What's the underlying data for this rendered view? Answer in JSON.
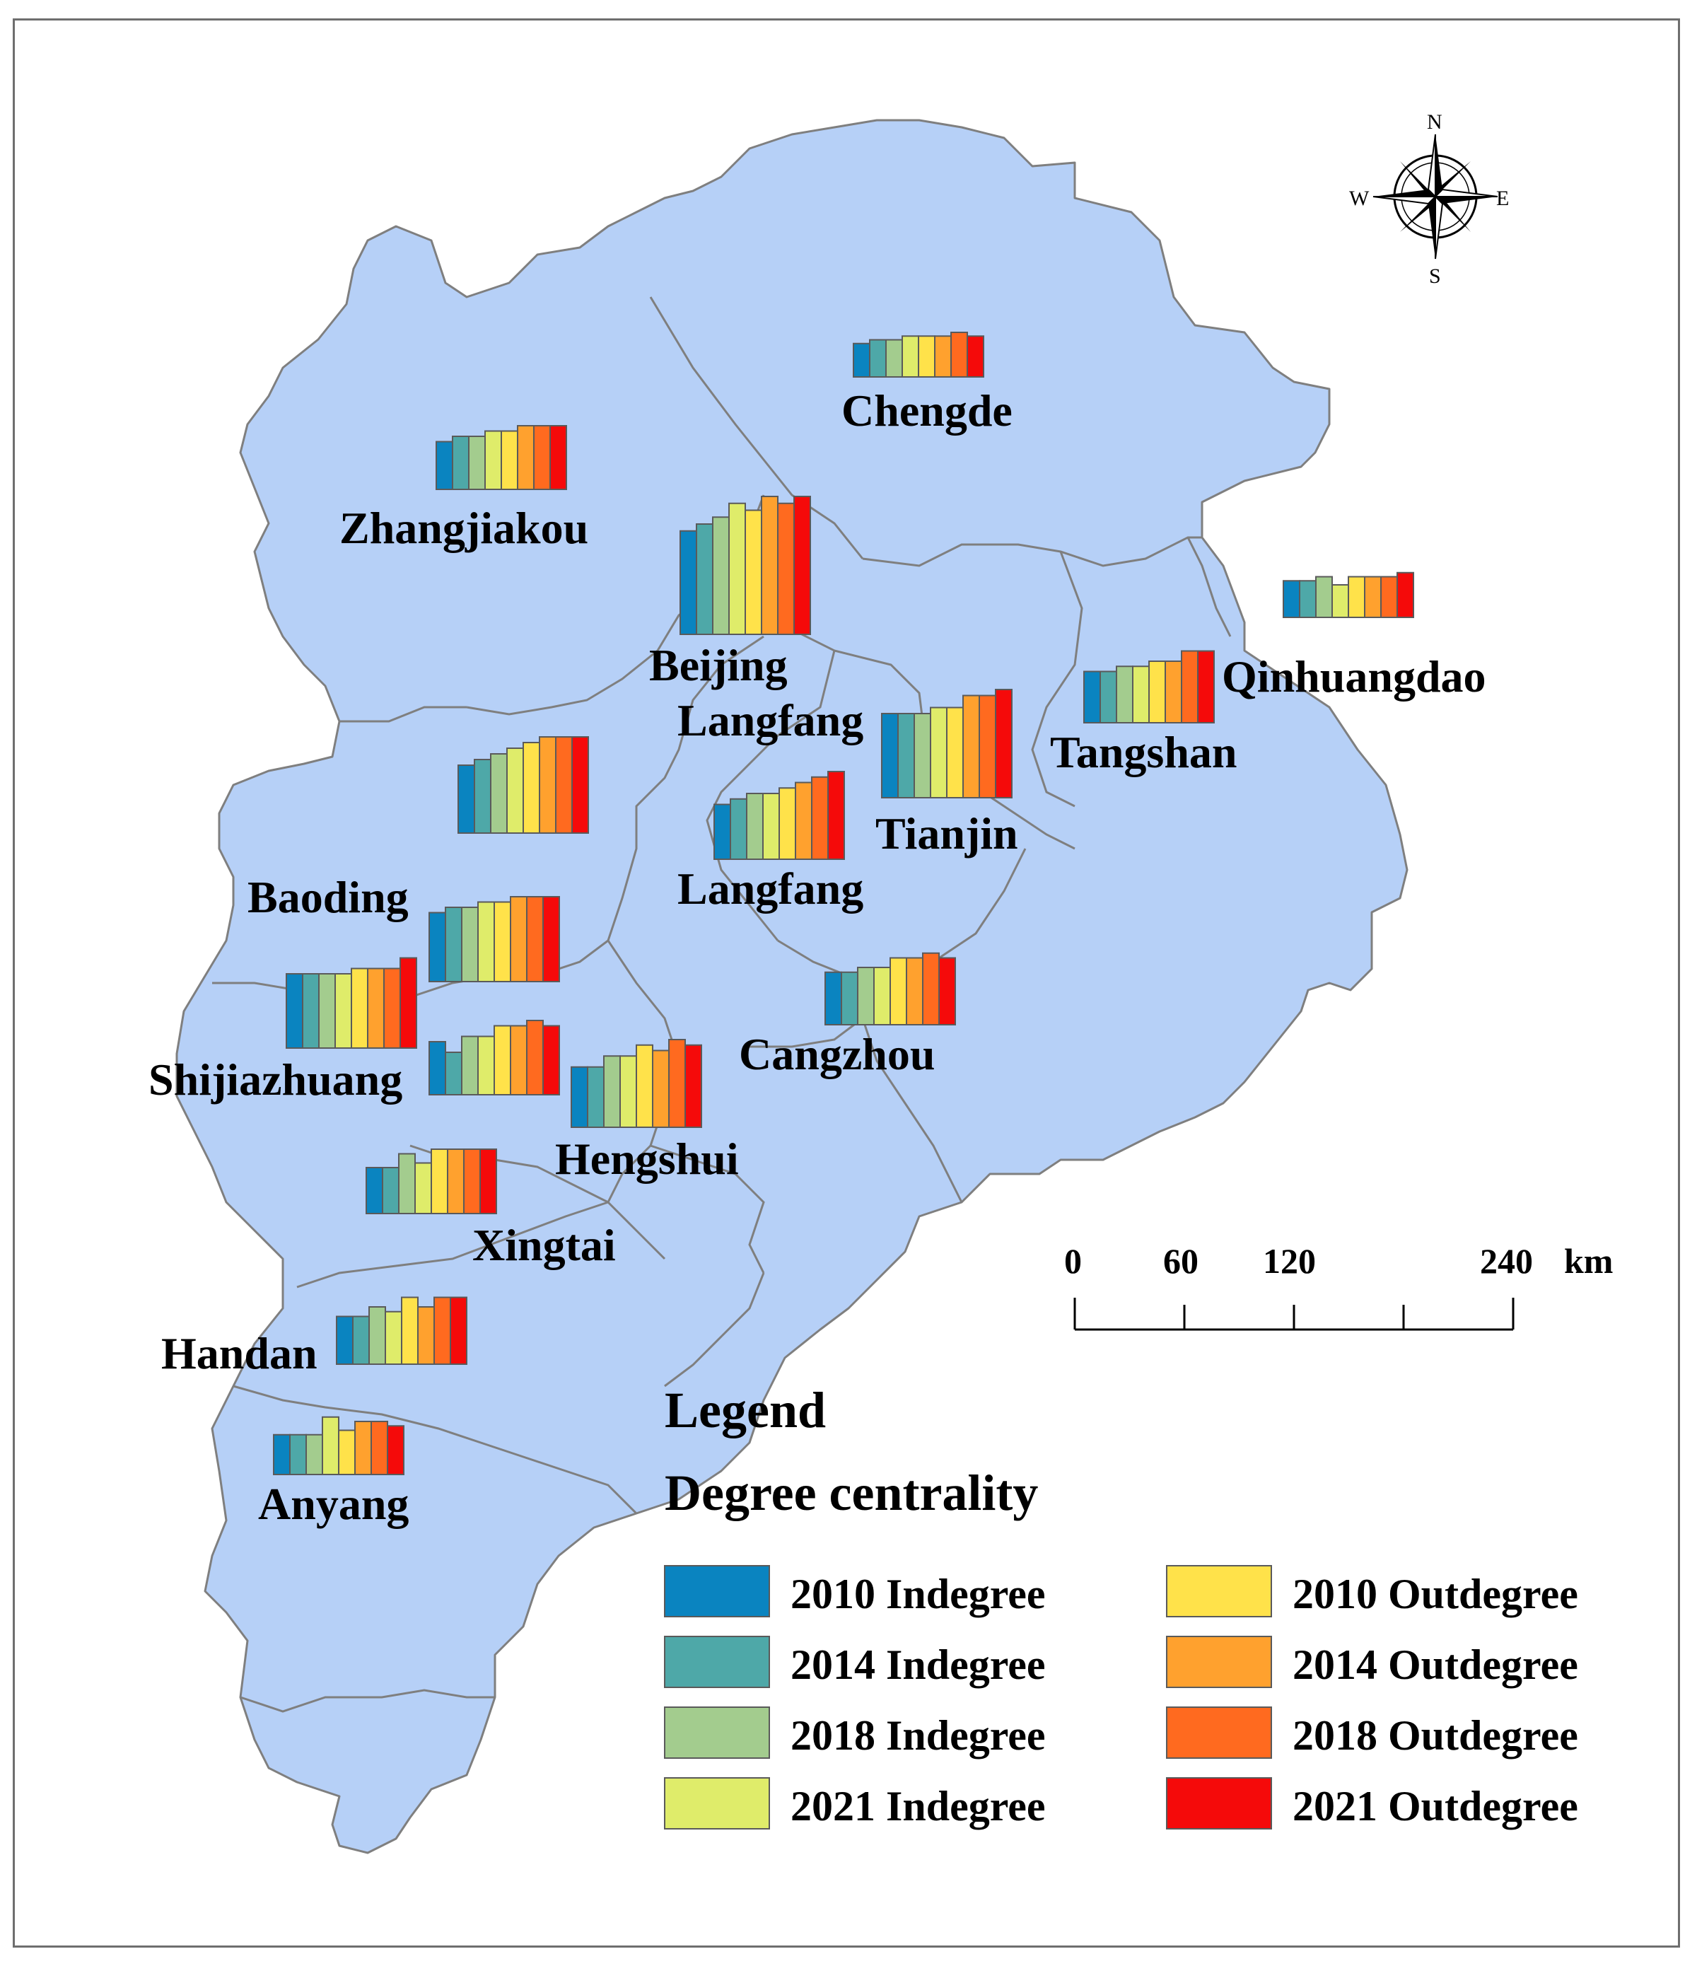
{
  "compass": {
    "north": "N",
    "south": "S",
    "east": "E",
    "west": "W"
  },
  "scale_bar": {
    "labels": [
      "0",
      "60",
      "120",
      "240"
    ],
    "unit": "km"
  },
  "legend": {
    "title": "Legend",
    "subtitle": "Degree centrality",
    "items": [
      {
        "label": "2010 Indegree",
        "color": "#0a84c0"
      },
      {
        "label": "2014 Indegree",
        "color": "#4ea8a8"
      },
      {
        "label": "2018 Indegree",
        "color": "#a3cc8e"
      },
      {
        "label": "2021 Indegree",
        "color": "#dfec6a"
      },
      {
        "label": "2010 Outdegree",
        "color": "#ffe24a"
      },
      {
        "label": "2014 Outdegree",
        "color": "#ffa12e"
      },
      {
        "label": "2018 Outdegree",
        "color": "#ff6a1f"
      },
      {
        "label": "2021 Outdegree",
        "color": "#f50a0a"
      }
    ]
  },
  "colors": {
    "land": "#b6d0f7",
    "border": "#7f7f7f",
    "frame": "#6e6e6e"
  },
  "chart_data": {
    "type": "bar",
    "categories": [
      "2010 Indegree",
      "2014 Indegree",
      "2018 Indegree",
      "2021 Indegree",
      "2010 Outdegree",
      "2014 Outdegree",
      "2018 Outdegree",
      "2021 Outdegree"
    ],
    "cities": [
      {
        "name": "Chengde",
        "values": [
          0.45,
          0.5,
          0.5,
          0.55,
          0.55,
          0.55,
          0.6,
          0.55
        ]
      },
      {
        "name": "Zhangjiakou",
        "values": [
          0.45,
          0.5,
          0.5,
          0.55,
          0.55,
          0.6,
          0.6,
          0.6
        ]
      },
      {
        "name": "Beijing",
        "values": [
          0.75,
          0.8,
          0.85,
          0.95,
          0.9,
          1.0,
          0.95,
          1.0
        ]
      },
      {
        "name": "Qinhuangdao",
        "values": [
          0.45,
          0.45,
          0.5,
          0.4,
          0.5,
          0.5,
          0.5,
          0.55
        ]
      },
      {
        "name": "Tangshan",
        "values": [
          0.5,
          0.5,
          0.55,
          0.55,
          0.6,
          0.6,
          0.7,
          0.7
        ]
      },
      {
        "name": "Tianjin",
        "values": [
          0.7,
          0.7,
          0.7,
          0.75,
          0.75,
          0.85,
          0.85,
          0.9
        ]
      },
      {
        "name": "Langfang",
        "values": [
          0.5,
          0.55,
          0.6,
          0.6,
          0.65,
          0.7,
          0.75,
          0.8
        ]
      },
      {
        "name": "Baoding",
        "values": [
          0.6,
          0.65,
          0.7,
          0.75,
          0.8,
          0.85,
          0.85,
          0.85
        ]
      },
      {
        "name": "Shijiazhuang (upper)",
        "values": [
          0.65,
          0.7,
          0.7,
          0.75,
          0.75,
          0.8,
          0.8,
          0.8
        ]
      },
      {
        "name": "Shijiazhuang",
        "values": [
          0.7,
          0.7,
          0.7,
          0.7,
          0.75,
          0.75,
          0.75,
          0.85
        ]
      },
      {
        "name": "Shijiazhuang (lower)",
        "values": [
          0.5,
          0.4,
          0.55,
          0.55,
          0.65,
          0.65,
          0.7,
          0.65
        ]
      },
      {
        "name": "Hengshui",
        "values": [
          0.55,
          0.55,
          0.65,
          0.65,
          0.75,
          0.7,
          0.8,
          0.75
        ]
      },
      {
        "name": "Cangzhou",
        "values": [
          0.55,
          0.55,
          0.6,
          0.6,
          0.7,
          0.7,
          0.75,
          0.7
        ]
      },
      {
        "name": "Xingtai",
        "values": [
          0.5,
          0.5,
          0.65,
          0.55,
          0.7,
          0.7,
          0.7,
          0.7
        ]
      },
      {
        "name": "Handan",
        "values": [
          0.5,
          0.5,
          0.6,
          0.55,
          0.7,
          0.6,
          0.7,
          0.7
        ]
      },
      {
        "name": "Anyang",
        "values": [
          0.45,
          0.45,
          0.45,
          0.65,
          0.5,
          0.6,
          0.6,
          0.55
        ]
      }
    ]
  },
  "labels": {
    "chengde": "Chengde",
    "zhangjiakou": "Zhangjiakou",
    "beijing": "Beijing",
    "langfang_upper": "Langfang",
    "qinhuangdao": "Qinhuangdao",
    "tangshan": "Tangshan",
    "tianjin": "Tianjin",
    "langfang": "Langfang",
    "baoding": "Baoding",
    "shijiazhuang": "Shijiazhuang",
    "cangzhou": "Cangzhou",
    "hengshui": "Hengshui",
    "xingtai": "Xingtai",
    "handan": "Handan",
    "anyang": "Anyang"
  }
}
